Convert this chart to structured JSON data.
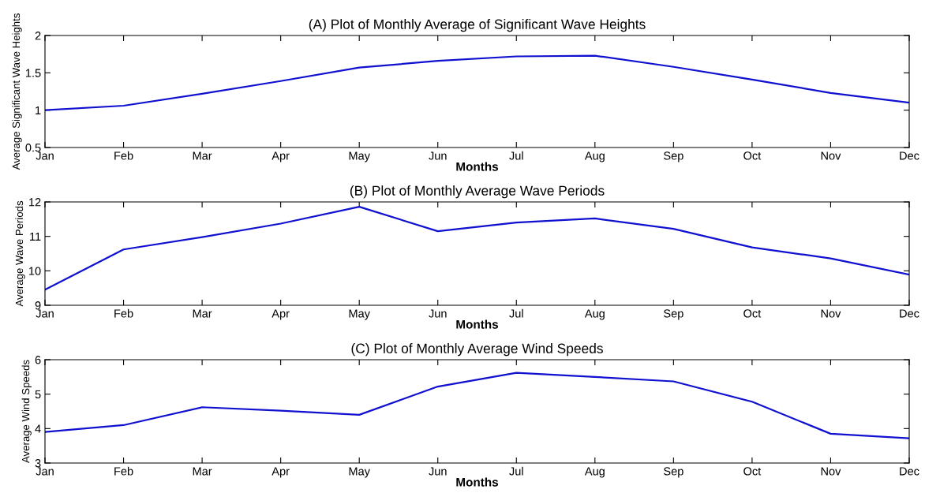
{
  "chart_data": [
    {
      "type": "line",
      "title": "(A) Plot of Monthly Average of Significant Wave Heights",
      "xlabel": "Months",
      "ylabel": "Average Significant Wave Heights",
      "categories": [
        "Jan",
        "Feb",
        "Mar",
        "Apr",
        "May",
        "Jun",
        "Jul",
        "Aug",
        "Sep",
        "Oct",
        "Nov",
        "Dec"
      ],
      "series": [
        {
          "color": "#1010d0",
          "values": [
            1.0,
            1.06,
            1.22,
            1.39,
            1.57,
            1.66,
            1.72,
            1.73,
            1.58,
            1.41,
            1.23,
            1.1
          ]
        }
      ],
      "ylim": [
        0.5,
        2
      ],
      "yticks": [
        0.5,
        1,
        1.5,
        2
      ],
      "grid": false
    },
    {
      "type": "line",
      "title": "(B) Plot of Monthly Average Wave Periods",
      "xlabel": "Months",
      "ylabel": "Average Wave Periods",
      "categories": [
        "Jan",
        "Feb",
        "Mar",
        "Apr",
        "May",
        "Jun",
        "Jul",
        "Aug",
        "Sep",
        "Oct",
        "Nov",
        "Dec"
      ],
      "series": [
        {
          "color": "#1010d0",
          "values": [
            9.45,
            10.62,
            10.98,
            11.37,
            11.86,
            11.15,
            11.4,
            11.52,
            11.22,
            10.68,
            10.36,
            9.89
          ]
        }
      ],
      "ylim": [
        9,
        12
      ],
      "yticks": [
        9,
        10,
        11,
        12
      ],
      "grid": false
    },
    {
      "type": "line",
      "title": "(C) Plot of Monthly Average Wind Speeds",
      "xlabel": "Months",
      "ylabel": "Average Wind Speeds",
      "categories": [
        "Jan",
        "Feb",
        "Mar",
        "Apr",
        "May",
        "Jun",
        "Jul",
        "Aug",
        "Sep",
        "Oct",
        "Nov",
        "Dec"
      ],
      "series": [
        {
          "color": "#1010d0",
          "values": [
            3.9,
            4.1,
            4.62,
            4.52,
            4.4,
            5.22,
            5.62,
            5.5,
            5.37,
            4.78,
            3.85,
            3.72
          ]
        }
      ],
      "ylim": [
        3,
        6
      ],
      "yticks": [
        3,
        4,
        5,
        6
      ],
      "grid": false
    }
  ]
}
